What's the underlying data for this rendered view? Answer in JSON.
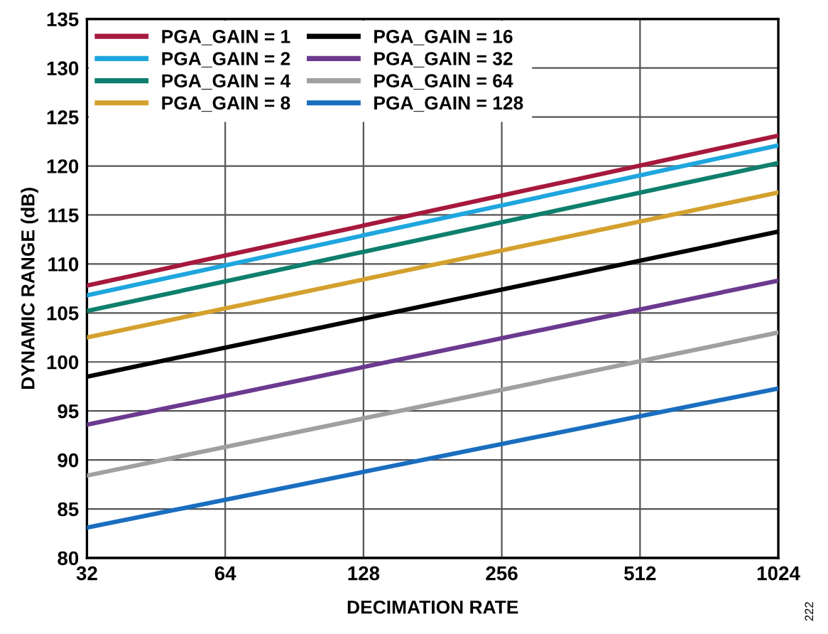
{
  "chart_data": {
    "type": "line",
    "xlabel": "DECIMATION RATE",
    "ylabel": "DYNAMIC RANGE (dB)",
    "x": [
      32,
      1024
    ],
    "log": "x",
    "series": [
      {
        "name": "PGA_GAIN = 1",
        "color": "#a6193c",
        "values": [
          107.8,
          123.1
        ]
      },
      {
        "name": "PGA_GAIN = 2",
        "color": "#1ea6de",
        "values": [
          106.8,
          122.1
        ]
      },
      {
        "name": "PGA_GAIN = 4",
        "color": "#0e7f6e",
        "values": [
          105.2,
          120.3
        ]
      },
      {
        "name": "PGA_GAIN = 8",
        "color": "#d4a12e",
        "values": [
          102.5,
          117.3
        ]
      },
      {
        "name": "PGA_GAIN = 16",
        "color": "#000000",
        "values": [
          98.5,
          113.3
        ]
      },
      {
        "name": "PGA_GAIN = 32",
        "color": "#6b3a8f",
        "values": [
          93.6,
          108.3
        ]
      },
      {
        "name": "PGA_GAIN = 64",
        "color": "#a0a0a0",
        "values": [
          88.4,
          103.0
        ]
      },
      {
        "name": "PGA_GAIN = 128",
        "color": "#1a6ebf",
        "values": [
          83.1,
          97.3
        ]
      }
    ],
    "xlim": [
      32,
      1024
    ],
    "xticks": [
      32,
      64,
      128,
      256,
      512,
      1024
    ],
    "ylim": [
      80,
      135
    ],
    "yticks": [
      80,
      85,
      90,
      95,
      100,
      105,
      110,
      115,
      120,
      125,
      130,
      135
    ],
    "grid": true,
    "legend": "top left",
    "line_style": "solid",
    "marker": "none",
    "annotations": [
      "222"
    ]
  }
}
